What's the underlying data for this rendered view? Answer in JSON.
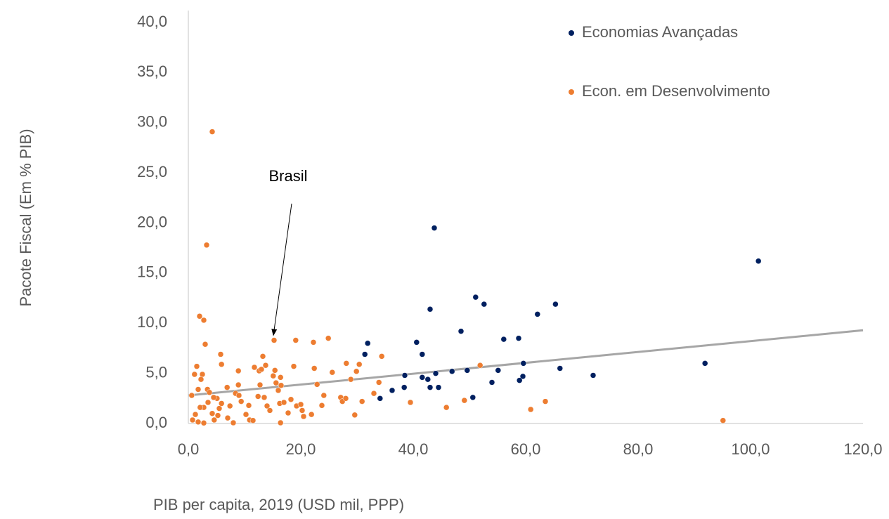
{
  "chart_data": {
    "type": "scatter",
    "xlabel": "PIB per capita, 2019 (USD mil, PPP)",
    "ylabel": "Pacote Fiscal (Em % PIB)",
    "xlim": [
      0,
      120
    ],
    "ylim": [
      0,
      40
    ],
    "xticks": [
      {
        "value": 0,
        "label": "0,0"
      },
      {
        "value": 20,
        "label": "20,0"
      },
      {
        "value": 40,
        "label": "40,0"
      },
      {
        "value": 60,
        "label": "60,0"
      },
      {
        "value": 80,
        "label": "80,0"
      },
      {
        "value": 100,
        "label": "100,0"
      },
      {
        "value": 120,
        "label": "120,0"
      }
    ],
    "yticks": [
      {
        "value": 0,
        "label": "0,0"
      },
      {
        "value": 5,
        "label": "5,0"
      },
      {
        "value": 10,
        "label": "10,0"
      },
      {
        "value": 15,
        "label": "15,0"
      },
      {
        "value": 20,
        "label": "20,0"
      },
      {
        "value": 25,
        "label": "25,0"
      },
      {
        "value": 30,
        "label": "30,0"
      },
      {
        "value": 35,
        "label": "35,0"
      },
      {
        "value": 40,
        "label": "40,0"
      }
    ],
    "grid": false,
    "legend": "top-right",
    "series": [
      {
        "name": "Economias Avançadas",
        "color": "#002060",
        "x": [
          101.4,
          43.75,
          91.9,
          72,
          66.1,
          65.3,
          62.1,
          58.75,
          59.6,
          59.5,
          58.9,
          56.1,
          55.1,
          54,
          52.6,
          51.1,
          50.6,
          49.6,
          48.5,
          46.9,
          44.5,
          44,
          43,
          42.6,
          43,
          41.6,
          41.6,
          40.6,
          38.5,
          38.4,
          36.25,
          34.1,
          31.9,
          31.4
        ],
        "values": [
          16.2,
          19.5,
          6.0,
          4.8,
          5.5,
          11.9,
          10.9,
          8.5,
          6.0,
          4.7,
          4.3,
          8.4,
          5.3,
          4.1,
          11.9,
          12.6,
          2.6,
          5.3,
          9.2,
          5.2,
          3.6,
          5.0,
          3.6,
          4.4,
          11.4,
          4.6,
          6.9,
          8.1,
          4.8,
          3.6,
          3.3,
          2.5,
          8.0,
          6.9
        ]
      },
      {
        "name": "Econ. em Desenvolvimento",
        "color": "#ed7d31",
        "x": [
          4.25,
          3.25,
          2,
          2.75,
          3,
          5.75,
          5.9,
          1.5,
          1.1,
          2.5,
          2.25,
          1.75,
          3.4,
          3.5,
          2.75,
          2.1,
          1.25,
          0.75,
          1.75,
          2.75,
          4.6,
          5.25,
          4.25,
          5.5,
          5.9,
          5.1,
          3.75,
          4.5,
          0.6,
          6.9,
          7.4,
          7,
          8,
          8.4,
          8.9,
          8.9,
          9,
          9.4,
          10.25,
          10.9,
          10.75,
          11.5,
          11.75,
          12.6,
          13,
          13.25,
          12.75,
          12.4,
          13.5,
          13.75,
          14,
          14.5,
          15.1,
          15.25,
          15.4,
          15.6,
          16,
          16.4,
          16.5,
          16.25,
          16.4,
          17,
          17.75,
          18.25,
          18.75,
          19.1,
          19.25,
          20,
          20.25,
          20.5,
          21.9,
          22.25,
          22.4,
          22.9,
          23.75,
          24.1,
          24.9,
          25.6,
          27.1,
          27.4,
          28,
          28.1,
          28.9,
          29.6,
          29.9,
          30.4,
          30.9,
          33,
          33.9,
          34.4,
          39.5,
          45.9,
          49.1,
          51.9,
          60.9,
          63.5,
          95.1
        ],
        "values": [
          29.1,
          17.8,
          10.7,
          10.3,
          7.9,
          6.9,
          5.9,
          5.7,
          4.9,
          4.9,
          4.4,
          3.4,
          3.4,
          2.1,
          1.6,
          1.6,
          0.9,
          0.35,
          0.15,
          0.05,
          0.35,
          0.8,
          1.0,
          1.5,
          2.0,
          2.5,
          3.1,
          2.6,
          2.8,
          3.6,
          1.75,
          0.55,
          0.07,
          3.0,
          3.85,
          5.25,
          2.8,
          2.2,
          0.9,
          0.35,
          1.8,
          0.3,
          5.6,
          5.25,
          5.4,
          6.7,
          3.85,
          2.7,
          2.6,
          5.8,
          1.75,
          1.3,
          4.75,
          8.3,
          5.3,
          4.05,
          3.3,
          4.6,
          3.8,
          2.0,
          0.07,
          2.1,
          1.05,
          2.4,
          5.7,
          8.3,
          1.75,
          1.9,
          1.3,
          0.7,
          0.9,
          8.1,
          5.5,
          3.9,
          1.8,
          2.8,
          8.5,
          5.1,
          2.6,
          2.2,
          2.5,
          6.0,
          4.4,
          0.85,
          5.2,
          5.9,
          2.2,
          3.0,
          4.1,
          6.7,
          2.1,
          1.6,
          2.3,
          5.8,
          1.4,
          2.2,
          0.3
        ]
      }
    ],
    "trendline": {
      "color": "#a6a6a6",
      "x": [
        0,
        120
      ],
      "values": [
        2.8,
        9.3
      ]
    },
    "annotations": [
      {
        "text": "Brasil",
        "x": 15.25,
        "y": 8.3
      }
    ]
  }
}
